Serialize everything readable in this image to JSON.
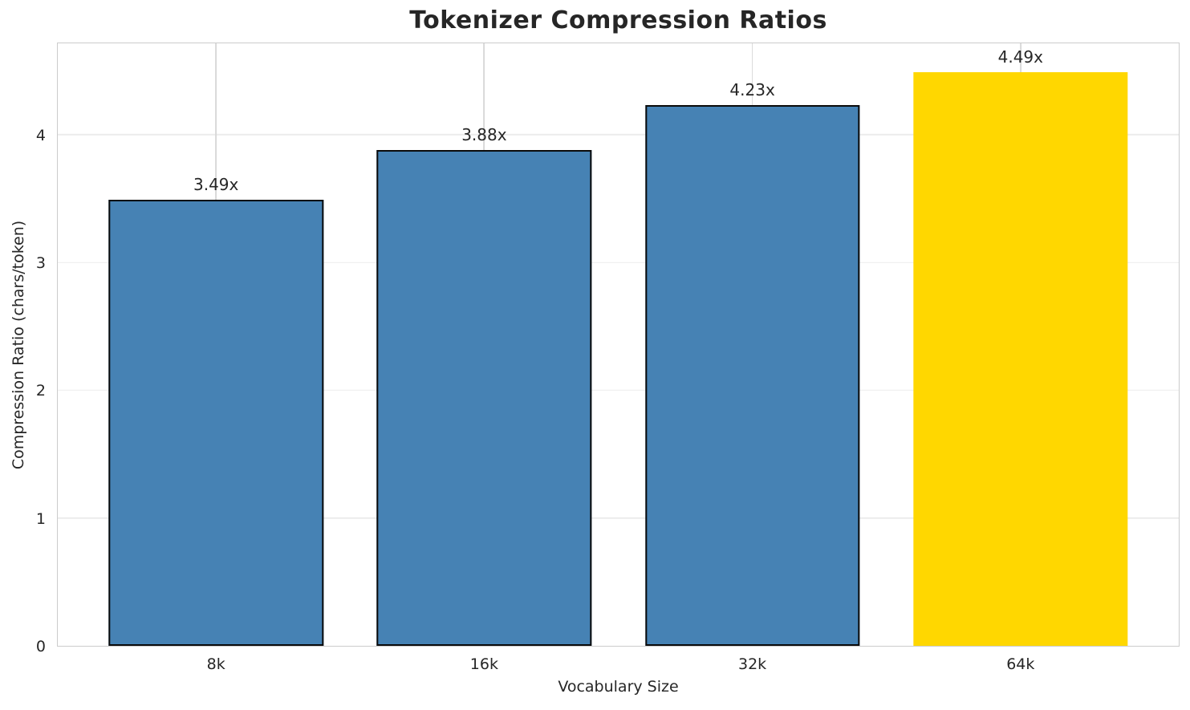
{
  "chart_data": {
    "type": "bar",
    "title": "Tokenizer Compression Ratios",
    "xlabel": "Vocabulary Size",
    "ylabel": "Compression Ratio (chars/token)",
    "categories": [
      "8k",
      "16k",
      "32k",
      "64k"
    ],
    "values": [
      3.49,
      3.88,
      4.23,
      4.49
    ],
    "value_labels": [
      "3.49x",
      "3.88x",
      "4.23x",
      "4.49x"
    ],
    "yticks": [
      0,
      1,
      2,
      3,
      4
    ],
    "ylim": [
      0,
      4.7145
    ],
    "xlim": [
      -0.59,
      3.59
    ],
    "bar_width": 0.8,
    "grid": true,
    "legend": false,
    "colors": {
      "bar_fill": "#4682B4",
      "bar_edge": "#0a0a0a",
      "highlight_fill": "#FFD700",
      "text": "#262626",
      "spine": "#cccccc",
      "hgrid": "#ececec",
      "vgrid": "#d9d9d9"
    },
    "highlight_index": 3
  }
}
